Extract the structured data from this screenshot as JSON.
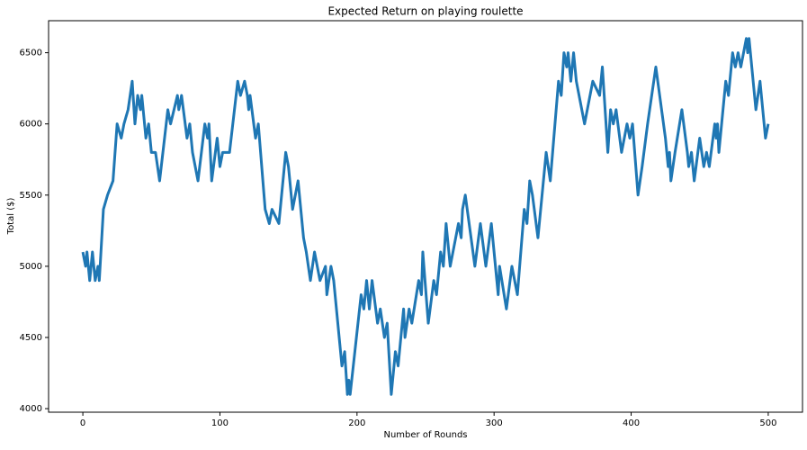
{
  "chart_data": {
    "type": "line",
    "title": "Expected Return on playing roulette",
    "x_label": "Number of Rounds",
    "y_label": "Total ($)",
    "xlim": [
      -25,
      525
    ],
    "ylim": [
      3975,
      6725
    ],
    "xticks": [
      0,
      100,
      200,
      300,
      400,
      500
    ],
    "yticks": [
      4000,
      4500,
      5000,
      5500,
      6000,
      6500
    ],
    "grid": false,
    "series": [
      {
        "color": "#1f77b4",
        "x": [
          0,
          2,
          3,
          5,
          7,
          9,
          11,
          12,
          15,
          18,
          22,
          25,
          28,
          30,
          33,
          36,
          38,
          40,
          42,
          43,
          46,
          48,
          50,
          53,
          56,
          62,
          64,
          69,
          70,
          72,
          76,
          78,
          80,
          84,
          89,
          91,
          92,
          94,
          98,
          100,
          102,
          107,
          113,
          115,
          118,
          120,
          121,
          122,
          126,
          128,
          133,
          136,
          138,
          143,
          148,
          150,
          153,
          157,
          161,
          163,
          166,
          169,
          173,
          177,
          178,
          181,
          183,
          189,
          191,
          193,
          194,
          195,
          203,
          205,
          207,
          209,
          211,
          215,
          217,
          220,
          222,
          225,
          228,
          230,
          234,
          235,
          238,
          240,
          245,
          247,
          248,
          252,
          256,
          258,
          261,
          263,
          265,
          268,
          274,
          276,
          277,
          279,
          286,
          290,
          294,
          298,
          302,
          303,
          304,
          309,
          313,
          317,
          322,
          324,
          326,
          328,
          332,
          338,
          341,
          347,
          349,
          351,
          353,
          354,
          356,
          358,
          360,
          366,
          372,
          377,
          379,
          383,
          385,
          387,
          389,
          393,
          397,
          399,
          401,
          405,
          408,
          412,
          418,
          425,
          427,
          428,
          429,
          432,
          437,
          441,
          442,
          444,
          446,
          450,
          453,
          455,
          457,
          461,
          462,
          463,
          464,
          469,
          471,
          474,
          476,
          478,
          480,
          484,
          485,
          486,
          488,
          491,
          494,
          498,
          500
        ],
        "values": [
          5100,
          5000,
          5100,
          4900,
          5100,
          4900,
          5000,
          4900,
          5400,
          5500,
          5600,
          6000,
          5900,
          6000,
          6100,
          6300,
          6000,
          6200,
          6100,
          6200,
          5900,
          6000,
          5800,
          5800,
          5600,
          6100,
          6000,
          6200,
          6100,
          6200,
          5900,
          6000,
          5800,
          5600,
          6000,
          5900,
          6000,
          5600,
          5900,
          5700,
          5800,
          5800,
          6300,
          6200,
          6300,
          6200,
          6100,
          6200,
          5900,
          6000,
          5400,
          5300,
          5400,
          5300,
          5800,
          5700,
          5400,
          5600,
          5200,
          5100,
          4900,
          5100,
          4900,
          5000,
          4800,
          5000,
          4900,
          4300,
          4400,
          4100,
          4200,
          4100,
          4800,
          4700,
          4900,
          4700,
          4900,
          4600,
          4700,
          4500,
          4600,
          4100,
          4400,
          4300,
          4700,
          4500,
          4700,
          4600,
          4900,
          4800,
          5100,
          4600,
          4900,
          4800,
          5100,
          5000,
          5300,
          5000,
          5300,
          5200,
          5400,
          5500,
          5000,
          5300,
          5000,
          5300,
          4900,
          4800,
          5000,
          4700,
          5000,
          4800,
          5400,
          5300,
          5600,
          5500,
          5200,
          5800,
          5600,
          6300,
          6200,
          6500,
          6400,
          6500,
          6300,
          6500,
          6300,
          6000,
          6300,
          6200,
          6400,
          5800,
          6100,
          6000,
          6100,
          5800,
          6000,
          5900,
          6000,
          5500,
          5700,
          6000,
          6400,
          5900,
          5700,
          5800,
          5600,
          5800,
          6100,
          5800,
          5700,
          5800,
          5600,
          5900,
          5700,
          5800,
          5700,
          6000,
          5900,
          6000,
          5800,
          6300,
          6200,
          6500,
          6400,
          6500,
          6400,
          6600,
          6500,
          6600,
          6400,
          6100,
          6300,
          5900,
          6000
        ]
      }
    ]
  }
}
